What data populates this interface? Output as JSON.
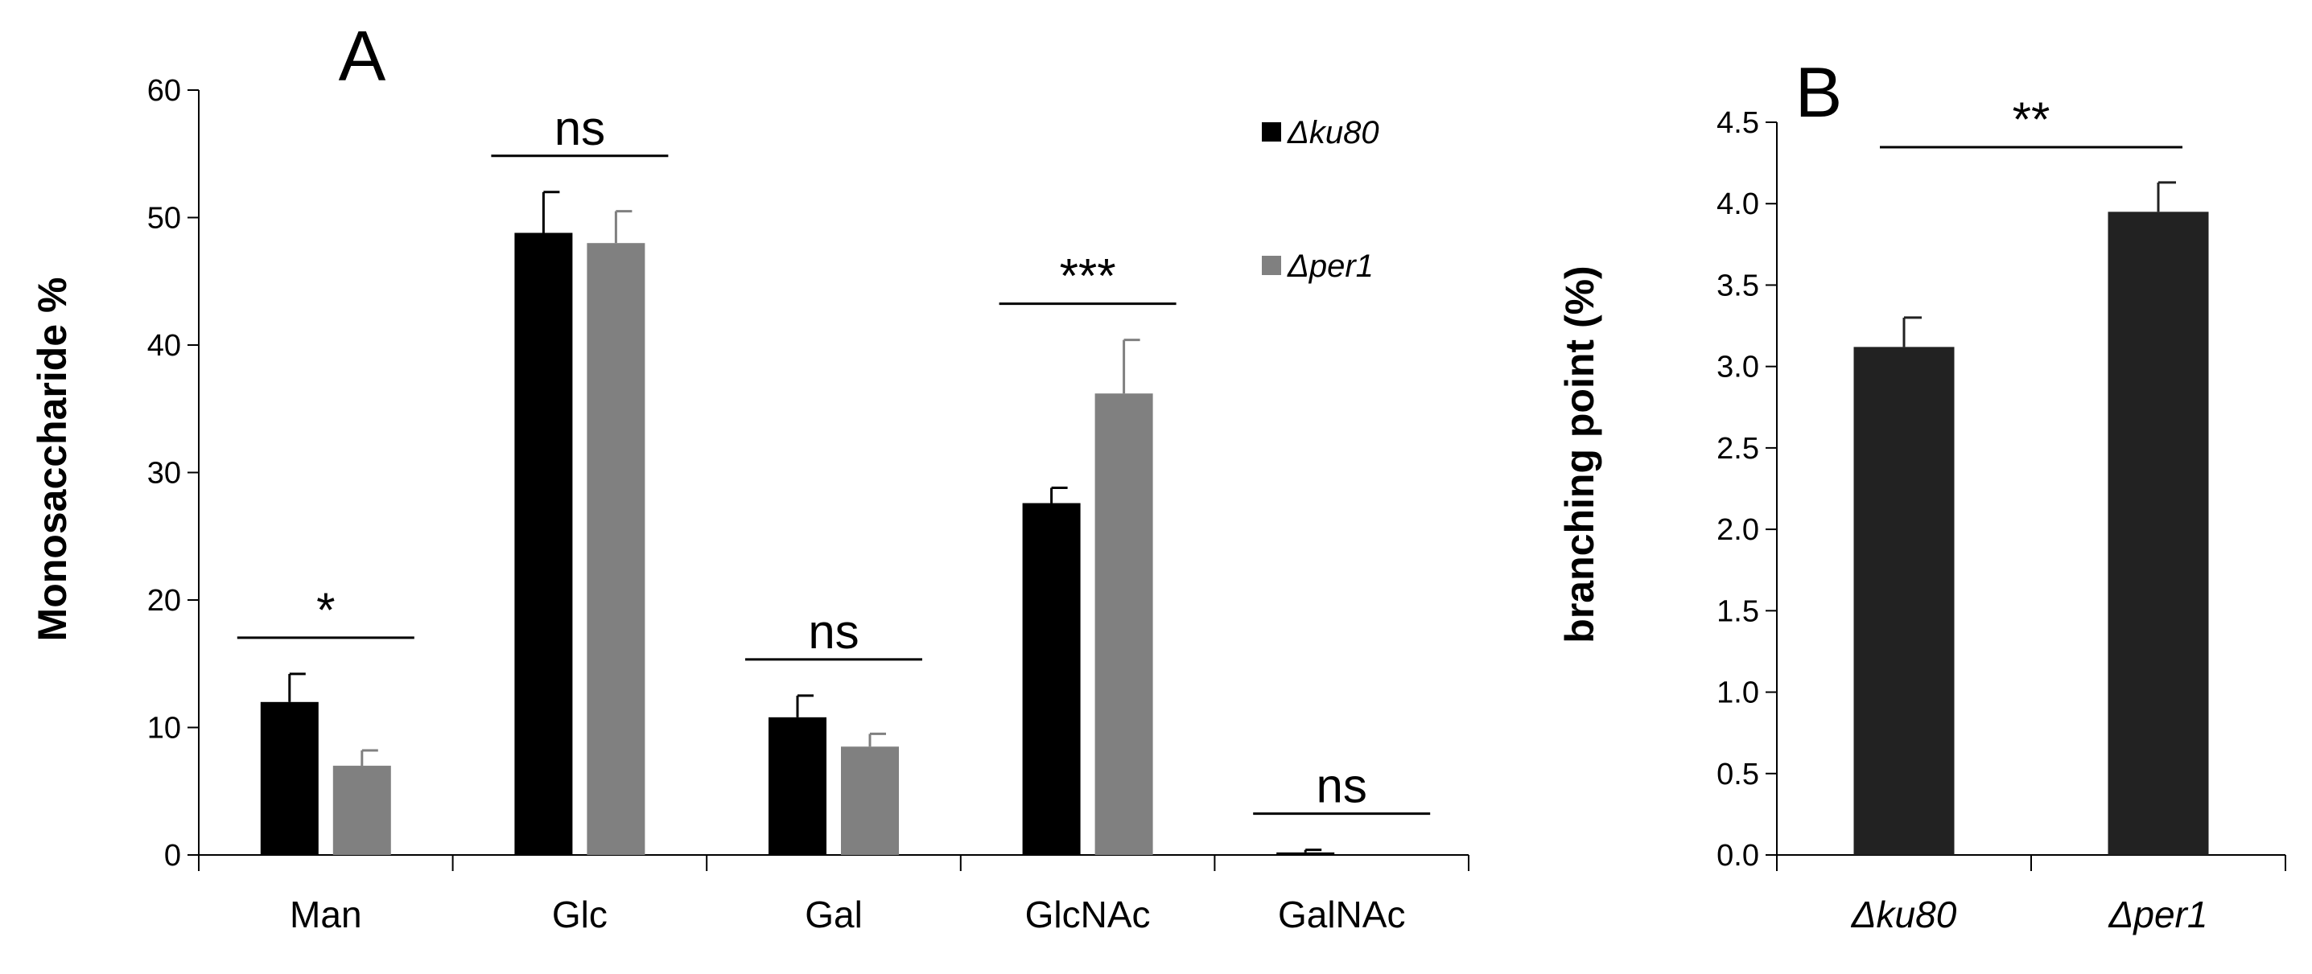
{
  "chart_data": [
    {
      "panel_label": "A",
      "type": "bar",
      "ylabel": "Monosaccharide %",
      "xlabel": "",
      "ylim": [
        0,
        60
      ],
      "yticks": [
        "0",
        "10",
        "20",
        "30",
        "40",
        "50",
        "60"
      ],
      "categories": [
        "Man",
        "Glc",
        "Gal",
        "GlcNAc",
        "GalNAc"
      ],
      "series": [
        {
          "name": "Δku80",
          "color": "#000000",
          "values": [
            12.0,
            48.8,
            10.8,
            27.6,
            0.2
          ],
          "errors": [
            2.2,
            3.2,
            1.7,
            1.2,
            0.2
          ]
        },
        {
          "name": "Δper1",
          "color": "#808080",
          "values": [
            7.0,
            48.0,
            8.5,
            36.2,
            0.0
          ],
          "errors": [
            1.2,
            2.5,
            1.0,
            4.2,
            0.0
          ]
        }
      ],
      "significance": [
        "*",
        "ns",
        "ns",
        "***",
        "ns"
      ],
      "legend_position": "top-right"
    },
    {
      "panel_label": "B",
      "type": "bar",
      "ylabel": "branching point (%)",
      "xlabel": "",
      "ylim": [
        0,
        4.5
      ],
      "yticks": [
        "0.0",
        "0.5",
        "1.0",
        "1.5",
        "2.0",
        "2.5",
        "3.0",
        "3.5",
        "4.0",
        "4.5"
      ],
      "categories": [
        "Δku80",
        "Δper1"
      ],
      "series": [
        {
          "name": "",
          "color": "#222222",
          "values": [
            3.12,
            3.95
          ],
          "errors": [
            0.18,
            0.18
          ]
        }
      ],
      "significance": [
        "**"
      ]
    }
  ]
}
